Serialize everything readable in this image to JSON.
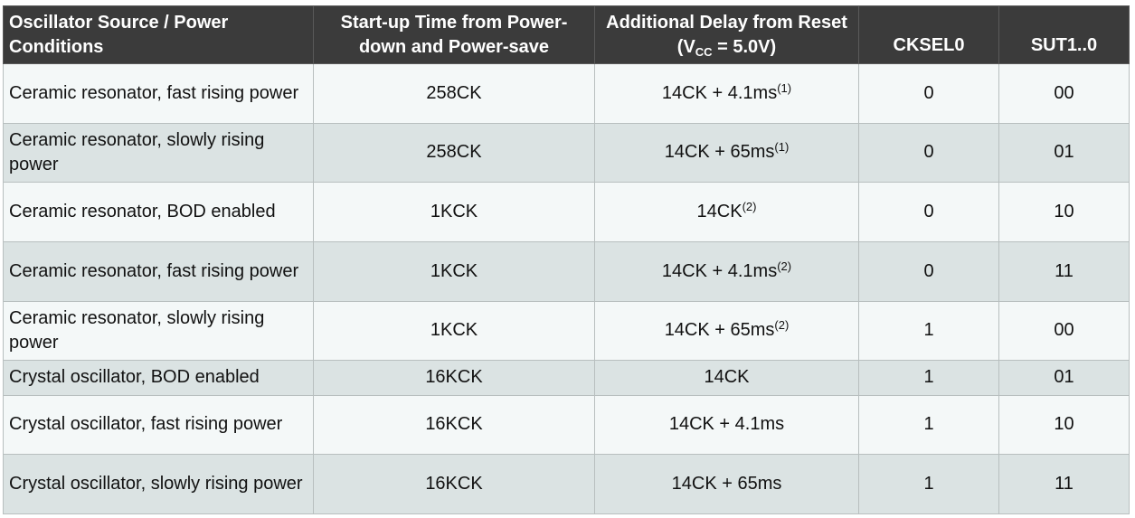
{
  "table": {
    "headers": {
      "source": "Oscillator Source / Power Conditions",
      "startup": "Start-up Time from Power-down and Power-save",
      "delay_prefix": "Additional Delay from Reset (V",
      "delay_sub": "CC",
      "delay_suffix": " = 5.0V)",
      "cksel0": "CKSEL0",
      "sut": "SUT1..0"
    },
    "rows": [
      {
        "source": "Ceramic resonator, fast rising power",
        "startup": "258CK",
        "delay": "14CK + 4.1ms",
        "note": "(1)",
        "cksel0": "0",
        "sut": "00"
      },
      {
        "source": "Ceramic resonator, slowly rising power",
        "startup": "258CK",
        "delay": "14CK + 65ms",
        "note": "(1)",
        "cksel0": "0",
        "sut": "01"
      },
      {
        "source": "Ceramic resonator, BOD enabled",
        "startup": "1KCK",
        "delay": "14CK",
        "note": "(2)",
        "cksel0": "0",
        "sut": "10"
      },
      {
        "source": "Ceramic resonator, fast rising power",
        "startup": "1KCK",
        "delay": "14CK + 4.1ms",
        "note": "(2)",
        "cksel0": "0",
        "sut": "11"
      },
      {
        "source": "Ceramic resonator, slowly rising power",
        "startup": "1KCK",
        "delay": "14CK + 65ms",
        "note": "(2)",
        "cksel0": "1",
        "sut": "00"
      },
      {
        "source": "Crystal oscillator, BOD enabled",
        "startup": "16KCK",
        "delay": "14CK",
        "note": "",
        "cksel0": "1",
        "sut": "01"
      },
      {
        "source": "Crystal oscillator, fast rising power",
        "startup": "16KCK",
        "delay": "14CK + 4.1ms",
        "note": "",
        "cksel0": "1",
        "sut": "10"
      },
      {
        "source": "Crystal oscillator, slowly rising power",
        "startup": "16KCK",
        "delay": "14CK + 65ms",
        "note": "",
        "cksel0": "1",
        "sut": "11"
      }
    ]
  },
  "colors": {
    "header_bg": "#3b3b3b",
    "row_light": "#f4f8f8",
    "row_dark": "#dbe3e3",
    "border": "#b8bfbf"
  }
}
